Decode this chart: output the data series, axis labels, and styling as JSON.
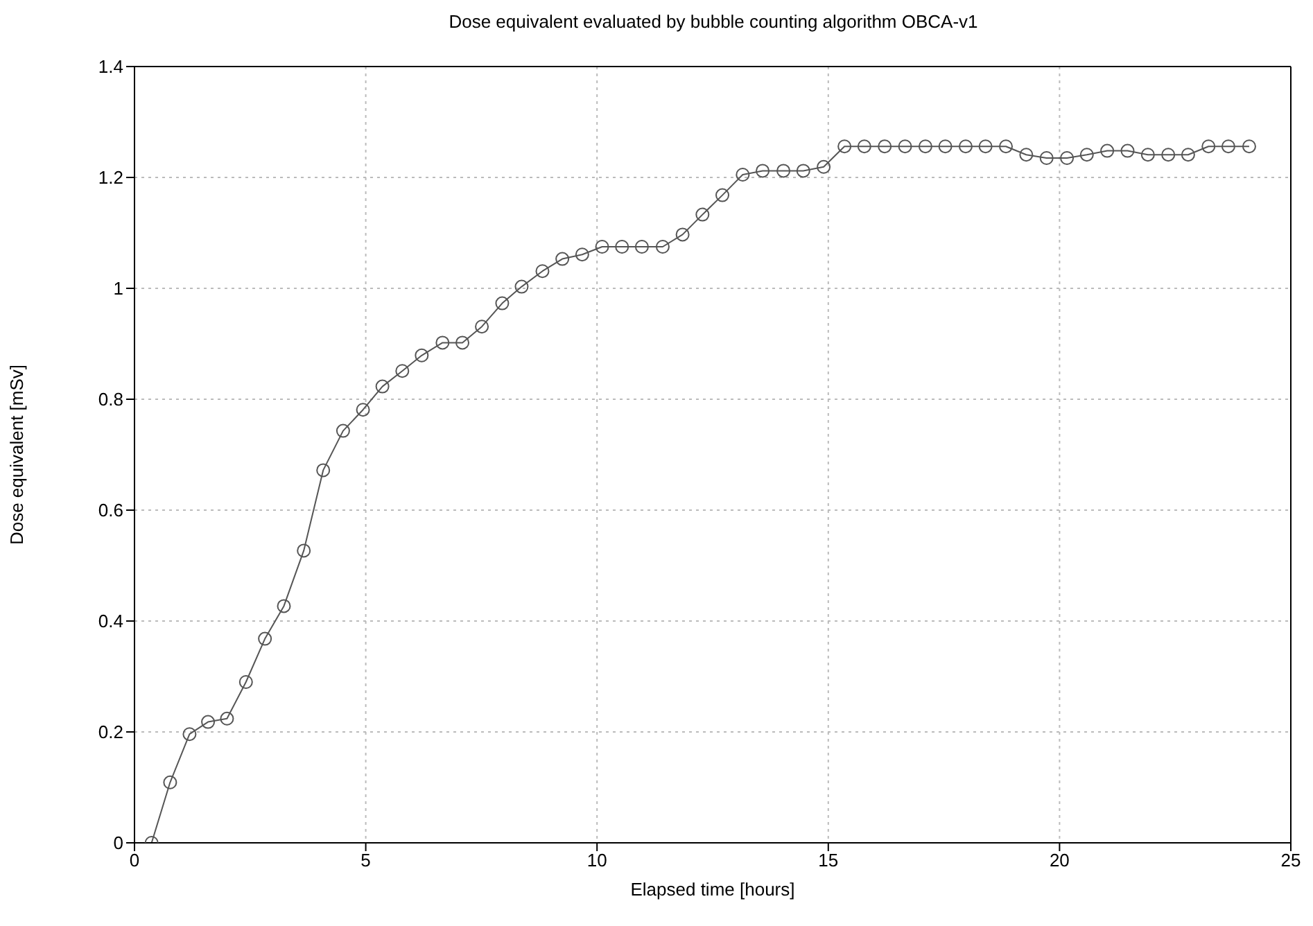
{
  "chart_data": {
    "type": "line",
    "title": "Dose equivalent evaluated by bubble counting algorithm OBCA-v1",
    "xlabel": "Elapsed time [hours]",
    "ylabel": "Dose equivalent [mSv]",
    "xlim": [
      0,
      25
    ],
    "xticks": [
      0,
      5,
      10,
      15,
      20,
      25
    ],
    "ylim": [
      0,
      1.4
    ],
    "yticks": [
      0,
      0.2,
      0.4,
      0.6,
      0.8,
      1,
      1.2,
      1.4
    ],
    "grid": true,
    "marker": "circle",
    "line_style": "solid",
    "series": [
      {
        "color": "#555555",
        "x": [
          0.37,
          0.77,
          1.19,
          1.59,
          2.0,
          2.41,
          2.82,
          3.23,
          3.66,
          4.08,
          4.51,
          4.94,
          5.36,
          5.79,
          6.21,
          6.66,
          7.09,
          7.51,
          7.95,
          8.37,
          8.82,
          9.25,
          9.68,
          10.11,
          10.54,
          10.97,
          11.42,
          11.85,
          12.28,
          12.71,
          13.15,
          13.58,
          14.03,
          14.46,
          14.9,
          15.35,
          15.78,
          16.22,
          16.66,
          17.1,
          17.53,
          17.97,
          18.4,
          18.84,
          19.28,
          19.72,
          20.16,
          20.59,
          21.03,
          21.47,
          21.91,
          22.35,
          22.78,
          23.22,
          23.65,
          24.1
        ],
        "values": [
          0,
          0.109,
          0.196,
          0.218,
          0.224,
          0.29,
          0.368,
          0.427,
          0.527,
          0.672,
          0.743,
          0.781,
          0.823,
          0.851,
          0.879,
          0.902,
          0.902,
          0.931,
          0.973,
          1.003,
          1.031,
          1.053,
          1.061,
          1.075,
          1.075,
          1.075,
          1.075,
          1.097,
          1.133,
          1.168,
          1.205,
          1.212,
          1.212,
          1.212,
          1.219,
          1.256,
          1.256,
          1.256,
          1.256,
          1.256,
          1.256,
          1.256,
          1.256,
          1.256,
          1.241,
          1.235,
          1.235,
          1.241,
          1.248,
          1.248,
          1.241,
          1.241,
          1.241,
          1.256,
          1.256,
          1.256
        ]
      }
    ]
  }
}
